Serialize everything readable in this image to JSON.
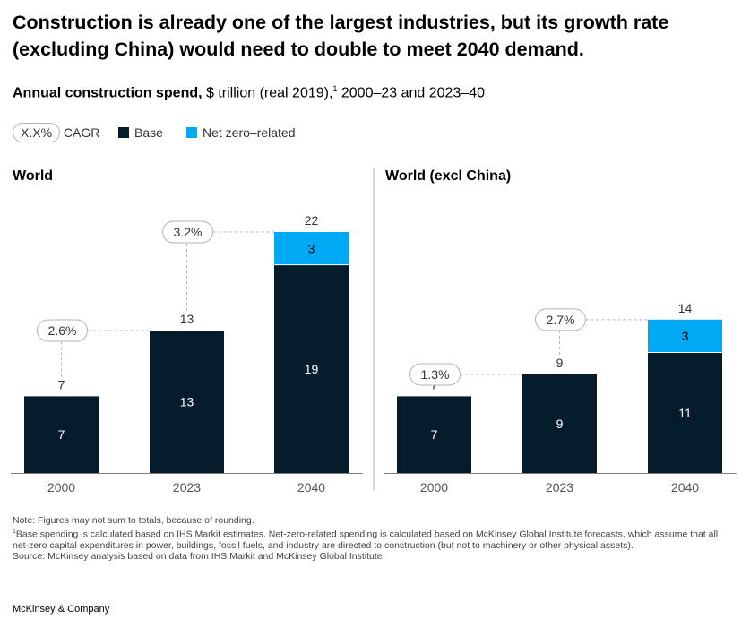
{
  "title": "Construction is already one of the largest industries, but its growth rate (excluding China) would need to double to meet 2040 demand.",
  "subtitle": {
    "bold": "Annual construction spend,",
    "rest": " $ trillion (real 2019),",
    "sup": "1",
    "rest2": " 2000–23 and 2023–40"
  },
  "legend": {
    "cagr_sample": "X.X%",
    "cagr_label": "CAGR",
    "base_label": "Base",
    "netzero_label": "Net zero–related"
  },
  "colors": {
    "base": "#051c2c",
    "net_zero": "#00a9f4",
    "axis": "#7f7f7f",
    "dashed": "#b3b3b3"
  },
  "chart_data": [
    {
      "type": "bar",
      "title": "World",
      "categories": [
        "2000",
        "2023",
        "2040"
      ],
      "series": [
        {
          "name": "Base",
          "values": [
            7,
            13,
            19
          ]
        },
        {
          "name": "Net zero–related",
          "values": [
            0,
            0,
            3
          ]
        }
      ],
      "totals": [
        7,
        13,
        22
      ],
      "cagr": [
        "2.6%",
        "3.2%"
      ],
      "ylim": [
        0,
        22
      ]
    },
    {
      "type": "bar",
      "title": "World (excl China)",
      "categories": [
        "2000",
        "2023",
        "2040"
      ],
      "series": [
        {
          "name": "Base",
          "values": [
            7,
            9,
            11
          ]
        },
        {
          "name": "Net zero–related",
          "values": [
            0,
            0,
            3
          ]
        }
      ],
      "totals": [
        7,
        9,
        14
      ],
      "cagr": [
        "1.3%",
        "2.7%"
      ],
      "ylim": [
        0,
        14
      ]
    }
  ],
  "notes": {
    "note": "Note: Figures may not sum to totals, because of rounding.",
    "footnote_sup": "1",
    "footnote": "Base spending is calculated based on IHS Markit estimates. Net-zero-related spending is calculated based on McKinsey Global Institute forecasts, which assume that all net-zero capital expenditures in power, buildings, fossil fuels, and industry are directed to construction (but not to machinery or other physical assets).",
    "source": "Source: McKinsey analysis based on data from IHS Markit and McKinsey Global Institute"
  },
  "footer": "McKinsey & Company"
}
